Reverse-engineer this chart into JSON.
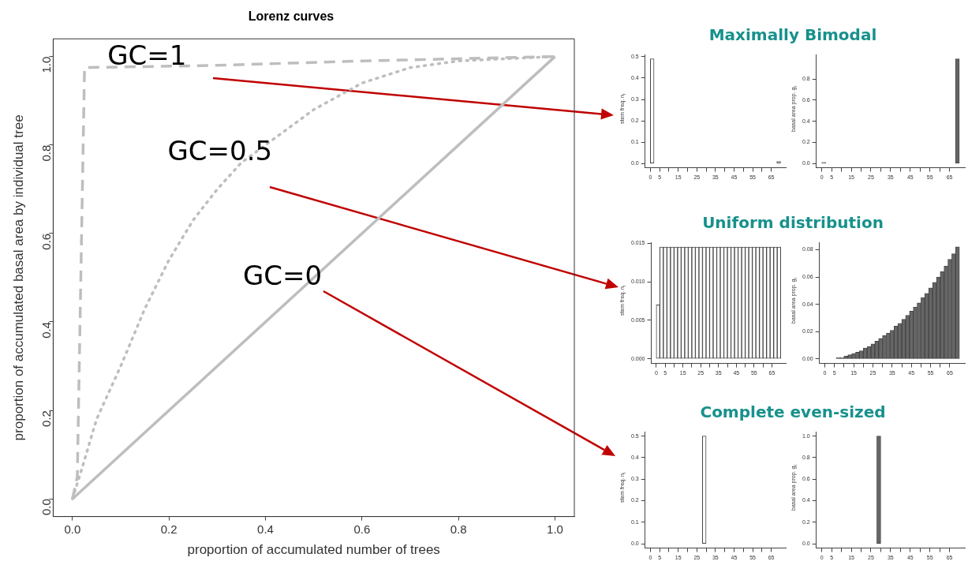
{
  "chart_data": [
    {
      "type": "line",
      "title": "Lorenz curves",
      "xlabel": "proportion of accumulated number of trees",
      "ylabel": "proportion of accumulated basal area by individual tree",
      "series": [
        {
          "color": "#bebebe",
          "line_style": "dashed",
          "x": [
            0,
            0.01,
            0.025,
            0.3,
            0.6,
            1
          ],
          "values": [
            0,
            0.05,
            0.975,
            0.98,
            0.99,
            1
          ]
        },
        {
          "color": "#bebebe",
          "line_style": "dotted",
          "x": [
            0,
            0.02,
            0.05,
            0.1,
            0.15,
            0.2,
            0.25,
            0.3,
            0.35,
            0.4,
            0.5,
            0.6,
            0.7,
            0.8,
            1
          ],
          "values": [
            0,
            0.07,
            0.18,
            0.3,
            0.43,
            0.54,
            0.63,
            0.7,
            0.76,
            0.8,
            0.88,
            0.94,
            0.975,
            0.99,
            1
          ]
        },
        {
          "color": "#bebebe",
          "line_style": "solid",
          "x": [
            0,
            1
          ],
          "values": [
            0,
            1
          ]
        }
      ],
      "xlim": [
        -0.04,
        1.04
      ],
      "ylim": [
        -0.04,
        1.04
      ],
      "xticks": [
        {
          "value": 0,
          "label": "0.0"
        },
        0.2,
        0.4,
        0.6,
        0.8,
        {
          "value": 1,
          "label": "1.0"
        }
      ],
      "yticks": [
        {
          "value": 0,
          "label": "0.0"
        },
        0.2,
        0.4,
        0.6,
        0.8,
        {
          "value": 1,
          "label": "1.0"
        }
      ],
      "annotations": [
        "GC=1",
        "GC=0.5",
        "GC=0"
      ]
    },
    {
      "type": "histogram",
      "title": "Maximally Bimodal",
      "ylabel": "stem freq. n$_{i}$",
      "color": "#ffffff",
      "bins": [
        0,
        2,
        4,
        6,
        8,
        10,
        12,
        14,
        16,
        18,
        20,
        22,
        24,
        26,
        28,
        30,
        32,
        34,
        36,
        38,
        40,
        42,
        44,
        46,
        48,
        50,
        52,
        54,
        56,
        58,
        60,
        62,
        64,
        66,
        68,
        70
      ],
      "values": [
        0.49,
        0,
        0,
        0,
        0,
        0,
        0,
        0,
        0,
        0,
        0,
        0,
        0,
        0,
        0,
        0,
        0,
        0,
        0,
        0,
        0,
        0,
        0,
        0,
        0,
        0,
        0,
        0,
        0,
        0,
        0,
        0,
        0,
        0,
        0.01
      ],
      "xlim": [
        -2.8,
        72.8
      ],
      "ylim": [
        -0.02,
        0.51
      ],
      "xticks": [
        0,
        5,
        {
          "value": 10,
          "label": null
        },
        15,
        {
          "value": 20,
          "label": null
        },
        25,
        {
          "value": 30,
          "label": null
        },
        35,
        {
          "value": 40,
          "label": null
        },
        45,
        {
          "value": 50,
          "label": null
        },
        55,
        {
          "value": 60,
          "label": null
        },
        65
      ],
      "yticks": [
        {
          "value": 0,
          "label": "0.0"
        },
        0.1,
        0.2,
        0.3,
        0.4,
        0.5
      ]
    },
    {
      "type": "histogram",
      "ylabel": "basal area prop. g$_{i}$",
      "color": "#666666",
      "bins": [
        0,
        2,
        4,
        6,
        8,
        10,
        12,
        14,
        16,
        18,
        20,
        22,
        24,
        26,
        28,
        30,
        32,
        34,
        36,
        38,
        40,
        42,
        44,
        46,
        48,
        50,
        52,
        54,
        56,
        58,
        60,
        62,
        64,
        66,
        68,
        70
      ],
      "values": [
        0.01,
        0,
        0,
        0,
        0,
        0,
        0,
        0,
        0,
        0,
        0,
        0,
        0,
        0,
        0,
        0,
        0,
        0,
        0,
        0,
        0,
        0,
        0,
        0,
        0,
        0,
        0,
        0,
        0,
        0,
        0,
        0,
        0,
        0,
        0.99
      ],
      "xlim": [
        -2.8,
        72.8
      ],
      "ylim": [
        -0.04,
        1.03
      ],
      "xticks": [
        0,
        5,
        {
          "value": 10,
          "label": null
        },
        15,
        {
          "value": 20,
          "label": null
        },
        25,
        {
          "value": 30,
          "label": null
        },
        35,
        {
          "value": 40,
          "label": null
        },
        45,
        {
          "value": 50,
          "label": null
        },
        55,
        {
          "value": 60,
          "label": null
        },
        65
      ],
      "yticks": [
        {
          "value": 0,
          "label": "0.0"
        },
        0.2,
        0.4,
        0.6,
        0.8
      ]
    },
    {
      "type": "histogram",
      "title": "Uniform distribution",
      "ylabel": "stem freq. n$_{i}$",
      "color": "#ffffff",
      "bins": [
        0,
        2,
        4,
        6,
        8,
        10,
        12,
        14,
        16,
        18,
        20,
        22,
        24,
        26,
        28,
        30,
        32,
        34,
        36,
        38,
        40,
        42,
        44,
        46,
        48,
        50,
        52,
        54,
        56,
        58,
        60,
        62,
        64,
        66,
        68,
        70
      ],
      "values": [
        0.007,
        0.0145,
        0.0145,
        0.0145,
        0.0145,
        0.0145,
        0.0145,
        0.0145,
        0.0145,
        0.0145,
        0.0145,
        0.0145,
        0.0145,
        0.0145,
        0.0145,
        0.0145,
        0.0145,
        0.0145,
        0.0145,
        0.0145,
        0.0145,
        0.0145,
        0.0145,
        0.0145,
        0.0145,
        0.0145,
        0.0145,
        0.0145,
        0.0145,
        0.0145,
        0.0145,
        0.0145,
        0.0145,
        0.0145,
        0.0145
      ],
      "xlim": [
        -2.8,
        72.8
      ],
      "ylim": [
        -0.0006,
        0.0151
      ],
      "xticks": [
        0,
        5,
        {
          "value": 10,
          "label": null
        },
        15,
        {
          "value": 20,
          "label": null
        },
        25,
        {
          "value": 30,
          "label": null
        },
        35,
        {
          "value": 40,
          "label": null
        },
        45,
        {
          "value": 50,
          "label": null
        },
        55,
        {
          "value": 60,
          "label": null
        },
        65
      ],
      "yticks": [
        {
          "value": 0,
          "label": "0.000"
        },
        0.005,
        {
          "value": 0.01,
          "label": "0.010"
        },
        0.015
      ]
    },
    {
      "type": "histogram",
      "ylabel": "basal area prop. g$_{i}$",
      "color": "#666666",
      "bins": [
        0,
        2,
        4,
        6,
        8,
        10,
        12,
        14,
        16,
        18,
        20,
        22,
        24,
        26,
        28,
        30,
        32,
        34,
        36,
        38,
        40,
        42,
        44,
        46,
        48,
        50,
        52,
        54,
        56,
        58,
        60,
        62,
        64,
        66,
        68,
        70
      ],
      "values": [
        0,
        0,
        0,
        0.001,
        0.001,
        0.002,
        0.003,
        0.004,
        0.005,
        0.006,
        0.008,
        0.009,
        0.011,
        0.013,
        0.015,
        0.017,
        0.019,
        0.021,
        0.024,
        0.026,
        0.029,
        0.032,
        0.035,
        0.038,
        0.041,
        0.045,
        0.048,
        0.052,
        0.056,
        0.06,
        0.064,
        0.068,
        0.073,
        0.077,
        0.082
      ],
      "xlim": [
        -2.8,
        72.8
      ],
      "ylim": [
        -0.0033,
        0.0853
      ],
      "xticks": [
        0,
        5,
        {
          "value": 10,
          "label": null
        },
        15,
        {
          "value": 20,
          "label": null
        },
        25,
        {
          "value": 30,
          "label": null
        },
        35,
        {
          "value": 40,
          "label": null
        },
        45,
        {
          "value": 50,
          "label": null
        },
        55,
        {
          "value": 60,
          "label": null
        },
        65
      ],
      "yticks": [
        {
          "value": 0,
          "label": "0.00"
        },
        0.02,
        0.04,
        0.06,
        0.08
      ]
    },
    {
      "type": "histogram",
      "title": "Complete even-sized",
      "ylabel": "stem freq. n$_{i}$",
      "color": "#ffffff",
      "bins": [
        0,
        2,
        4,
        6,
        8,
        10,
        12,
        14,
        16,
        18,
        20,
        22,
        24,
        26,
        28,
        30,
        32,
        34,
        36,
        38,
        40,
        42,
        44,
        46,
        48,
        50,
        52,
        54,
        56,
        58,
        60,
        62,
        64,
        66,
        68,
        70
      ],
      "values": [
        0,
        0,
        0,
        0,
        0,
        0,
        0,
        0,
        0,
        0,
        0,
        0,
        0,
        0,
        0.5,
        0,
        0,
        0,
        0,
        0,
        0,
        0,
        0,
        0,
        0,
        0,
        0,
        0,
        0,
        0,
        0,
        0,
        0,
        0,
        0
      ],
      "xlim": [
        -2.8,
        72.8
      ],
      "ylim": [
        -0.02,
        0.52
      ],
      "xticks": [
        0,
        5,
        {
          "value": 10,
          "label": null
        },
        15,
        {
          "value": 20,
          "label": null
        },
        25,
        {
          "value": 30,
          "label": null
        },
        35,
        {
          "value": 40,
          "label": null
        },
        45,
        {
          "value": 50,
          "label": null
        },
        55,
        {
          "value": 60,
          "label": null
        },
        65
      ],
      "yticks": [
        {
          "value": 0,
          "label": "0.0"
        },
        0.1,
        0.2,
        0.3,
        0.4,
        0.5
      ]
    },
    {
      "type": "histogram",
      "ylabel": "basal area prop. g$_{i}$",
      "color": "#666666",
      "bins": [
        0,
        2,
        4,
        6,
        8,
        10,
        12,
        14,
        16,
        18,
        20,
        22,
        24,
        26,
        28,
        30,
        32,
        34,
        36,
        38,
        40,
        42,
        44,
        46,
        48,
        50,
        52,
        54,
        56,
        58,
        60,
        62,
        64,
        66,
        68,
        70
      ],
      "values": [
        0,
        0,
        0,
        0,
        0,
        0,
        0,
        0,
        0,
        0,
        0,
        0,
        0,
        0,
        1,
        0,
        0,
        0,
        0,
        0,
        0,
        0,
        0,
        0,
        0,
        0,
        0,
        0,
        0,
        0,
        0,
        0,
        0,
        0,
        0
      ],
      "xlim": [
        -2.8,
        72.8
      ],
      "ylim": [
        -0.04,
        1.04
      ],
      "xticks": [
        0,
        5,
        {
          "value": 10,
          "label": null
        },
        15,
        {
          "value": 20,
          "label": null
        },
        25,
        {
          "value": 30,
          "label": null
        },
        35,
        {
          "value": 40,
          "label": null
        },
        45,
        {
          "value": 50,
          "label": null
        },
        55,
        {
          "value": 60,
          "label": null
        },
        65
      ],
      "yticks": [
        {
          "value": 0,
          "label": "0.0"
        },
        0.2,
        0.4,
        0.6,
        0.8,
        {
          "value": 1,
          "label": "1.0"
        }
      ]
    }
  ]
}
